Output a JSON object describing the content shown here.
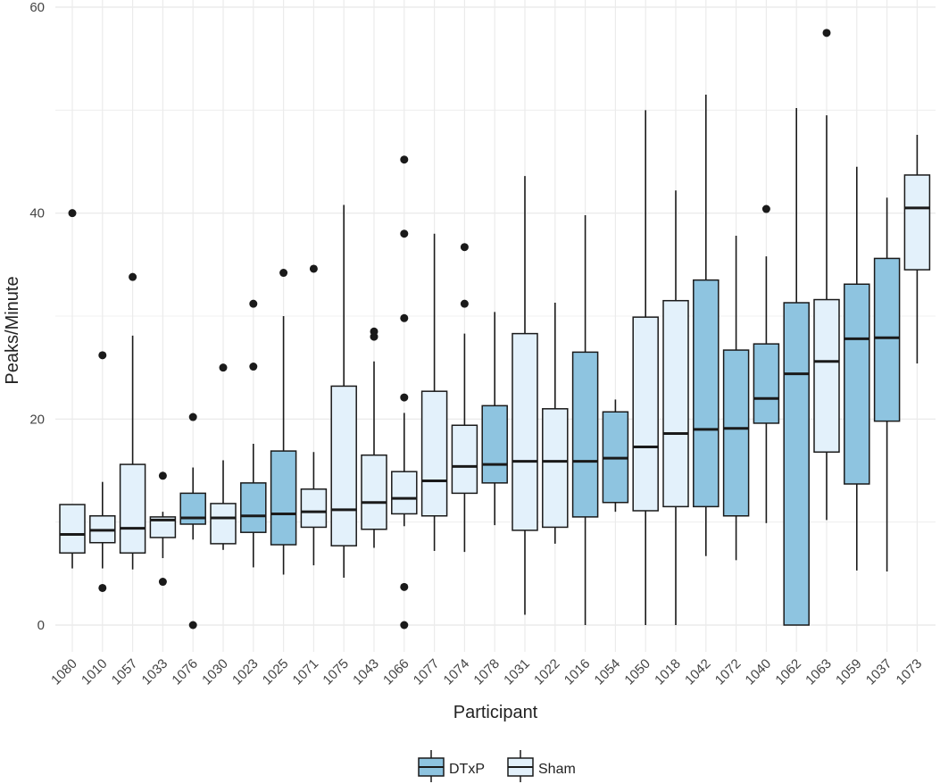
{
  "chart_data": {
    "type": "boxplot",
    "title": "",
    "xlabel": "Participant",
    "ylabel": "Peaks/Minute",
    "ylim": [
      -5,
      60
    ],
    "yticks": [
      0,
      20,
      40,
      60
    ],
    "legend": {
      "position": "bottom",
      "entries": [
        {
          "name": "DTxP",
          "color": "#8ec4e0"
        },
        {
          "name": "Sham",
          "color": "#e3f1fb"
        }
      ]
    },
    "colors": {
      "DTxP": "#8ec4e0",
      "Sham": "#e3f1fb",
      "stroke": "#1a1a1a",
      "grid": "#ebebeb"
    },
    "categories": [
      "1080",
      "1010",
      "1057",
      "1033",
      "1076",
      "1030",
      "1023",
      "1025",
      "1071",
      "1075",
      "1043",
      "1066",
      "1077",
      "1074",
      "1078",
      "1031",
      "1022",
      "1016",
      "1054",
      "1050",
      "1018",
      "1042",
      "1072",
      "1040",
      "1062",
      "1063",
      "1059",
      "1037",
      "1073"
    ],
    "boxes": [
      {
        "participant": "1080",
        "group": "Sham",
        "whisker_low": 5.5,
        "q1": 7.0,
        "median": 8.8,
        "q3": 11.7,
        "whisker_high": 11.7,
        "outliers": [
          40.0
        ]
      },
      {
        "participant": "1010",
        "group": "Sham",
        "whisker_low": 5.5,
        "q1": 8.0,
        "median": 9.2,
        "q3": 10.6,
        "whisker_high": 13.9,
        "outliers": [
          3.6,
          26.2
        ]
      },
      {
        "participant": "1057",
        "group": "Sham",
        "whisker_low": 5.4,
        "q1": 7.0,
        "median": 9.4,
        "q3": 15.6,
        "whisker_high": 28.1,
        "outliers": [
          33.8
        ]
      },
      {
        "participant": "1033",
        "group": "Sham",
        "whisker_low": 6.5,
        "q1": 8.5,
        "median": 10.2,
        "q3": 10.5,
        "whisker_high": 11.0,
        "outliers": [
          4.2,
          14.5
        ]
      },
      {
        "participant": "1076",
        "group": "DTxP",
        "whisker_low": 8.3,
        "q1": 9.8,
        "median": 10.4,
        "q3": 12.8,
        "whisker_high": 15.3,
        "outliers": [
          0.0,
          20.2
        ]
      },
      {
        "participant": "1030",
        "group": "Sham",
        "whisker_low": 7.3,
        "q1": 7.9,
        "median": 10.4,
        "q3": 11.8,
        "whisker_high": 16.0,
        "outliers": [
          25.0
        ]
      },
      {
        "participant": "1023",
        "group": "DTxP",
        "whisker_low": 5.6,
        "q1": 9.0,
        "median": 10.6,
        "q3": 13.8,
        "whisker_high": 17.6,
        "outliers": [
          25.1,
          31.2
        ]
      },
      {
        "participant": "1025",
        "group": "DTxP",
        "whisker_low": 4.9,
        "q1": 7.8,
        "median": 10.8,
        "q3": 16.9,
        "whisker_high": 30.0,
        "outliers": [
          34.2
        ]
      },
      {
        "participant": "1071",
        "group": "Sham",
        "whisker_low": 5.8,
        "q1": 9.5,
        "median": 11.0,
        "q3": 13.2,
        "whisker_high": 16.8,
        "outliers": [
          34.6
        ]
      },
      {
        "participant": "1075",
        "group": "Sham",
        "whisker_low": 4.6,
        "q1": 7.7,
        "median": 11.2,
        "q3": 23.2,
        "whisker_high": 40.8,
        "outliers": []
      },
      {
        "participant": "1043",
        "group": "Sham",
        "whisker_low": 7.5,
        "q1": 9.3,
        "median": 11.9,
        "q3": 16.5,
        "whisker_high": 25.6,
        "outliers": [
          28.0,
          28.5
        ]
      },
      {
        "participant": "1066",
        "group": "Sham",
        "whisker_low": 9.6,
        "q1": 10.8,
        "median": 12.3,
        "q3": 14.9,
        "whisker_high": 20.6,
        "outliers": [
          0.0,
          3.7,
          22.1,
          29.8,
          38.0,
          45.2
        ]
      },
      {
        "participant": "1077",
        "group": "Sham",
        "whisker_low": 7.2,
        "q1": 10.6,
        "median": 14.0,
        "q3": 22.7,
        "whisker_high": 38.0,
        "outliers": []
      },
      {
        "participant": "1074",
        "group": "Sham",
        "whisker_low": 7.1,
        "q1": 12.8,
        "median": 15.4,
        "q3": 19.4,
        "whisker_high": 28.3,
        "outliers": [
          31.2,
          36.7
        ]
      },
      {
        "participant": "1078",
        "group": "DTxP",
        "whisker_low": 9.7,
        "q1": 13.8,
        "median": 15.6,
        "q3": 21.3,
        "whisker_high": 30.4,
        "outliers": []
      },
      {
        "participant": "1031",
        "group": "Sham",
        "whisker_low": 1.0,
        "q1": 9.2,
        "median": 15.9,
        "q3": 28.3,
        "whisker_high": 43.6,
        "outliers": []
      },
      {
        "participant": "1022",
        "group": "Sham",
        "whisker_low": 7.9,
        "q1": 9.5,
        "median": 15.9,
        "q3": 21.0,
        "whisker_high": 31.3,
        "outliers": []
      },
      {
        "participant": "1016",
        "group": "DTxP",
        "whisker_low": 0.0,
        "q1": 10.5,
        "median": 15.9,
        "q3": 26.5,
        "whisker_high": 39.8,
        "outliers": []
      },
      {
        "participant": "1054",
        "group": "DTxP",
        "whisker_low": 11.0,
        "q1": 11.9,
        "median": 16.2,
        "q3": 20.7,
        "whisker_high": 21.9,
        "outliers": []
      },
      {
        "participant": "1050",
        "group": "Sham",
        "whisker_low": 0.0,
        "q1": 11.1,
        "median": 17.3,
        "q3": 29.9,
        "whisker_high": 50.0,
        "outliers": []
      },
      {
        "participant": "1018",
        "group": "Sham",
        "whisker_low": 0.0,
        "q1": 11.5,
        "median": 18.6,
        "q3": 31.5,
        "whisker_high": 42.2,
        "outliers": []
      },
      {
        "participant": "1042",
        "group": "DTxP",
        "whisker_low": 6.7,
        "q1": 11.5,
        "median": 19.0,
        "q3": 33.5,
        "whisker_high": 51.5,
        "outliers": []
      },
      {
        "participant": "1072",
        "group": "DTxP",
        "whisker_low": 6.3,
        "q1": 10.6,
        "median": 19.1,
        "q3": 26.7,
        "whisker_high": 37.8,
        "outliers": []
      },
      {
        "participant": "1040",
        "group": "DTxP",
        "whisker_low": 9.9,
        "q1": 19.6,
        "median": 22.0,
        "q3": 27.3,
        "whisker_high": 35.8,
        "outliers": [
          40.4
        ]
      },
      {
        "participant": "1062",
        "group": "DTxP",
        "whisker_low": 0.0,
        "q1": 0.0,
        "median": 24.4,
        "q3": 31.3,
        "whisker_high": 50.2,
        "outliers": []
      },
      {
        "participant": "1063",
        "group": "Sham",
        "whisker_low": 10.2,
        "q1": 16.8,
        "median": 25.6,
        "q3": 31.6,
        "whisker_high": 49.5,
        "outliers": [
          57.5
        ]
      },
      {
        "participant": "1059",
        "group": "DTxP",
        "whisker_low": 5.3,
        "q1": 13.7,
        "median": 27.8,
        "q3": 33.1,
        "whisker_high": 44.5,
        "outliers": []
      },
      {
        "participant": "1037",
        "group": "DTxP",
        "whisker_low": 5.2,
        "q1": 19.8,
        "median": 27.9,
        "q3": 35.6,
        "whisker_high": 41.5,
        "outliers": []
      },
      {
        "participant": "1073",
        "group": "Sham",
        "whisker_low": 25.4,
        "q1": 34.5,
        "median": 40.5,
        "q3": 43.7,
        "whisker_high": 47.6,
        "outliers": []
      }
    ]
  }
}
